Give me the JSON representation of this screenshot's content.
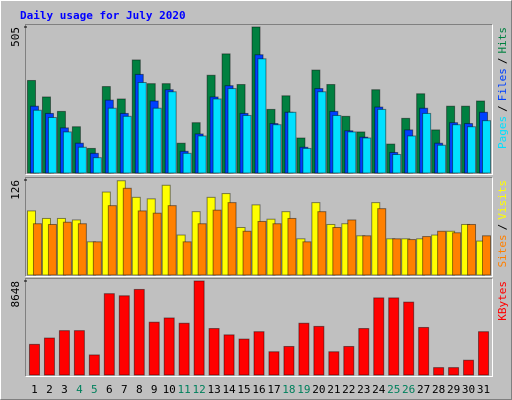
{
  "chart_data": [
    {
      "type": "bar",
      "title": "Daily usage for July 2020",
      "ylim": [
        0,
        505
      ],
      "yticks": [
        505
      ],
      "legend_separator": "/",
      "series": [
        {
          "name": "Hits",
          "color": "#008040",
          "values": [
            320,
            263,
            213,
            160,
            85,
            299,
            256,
            391,
            309,
            309,
            103,
            174,
            338,
            412,
            306,
            505,
            220,
            267,
            121,
            356,
            306,
            196,
            142,
            288,
            100,
            189,
            274,
            149,
            231,
            231,
            249
          ]
        },
        {
          "name": "Files",
          "color": "#0040ff",
          "values": [
            231,
            206,
            156,
            103,
            68,
            252,
            206,
            341,
            249,
            288,
            75,
            135,
            263,
            302,
            206,
            409,
            171,
            210,
            89,
            292,
            213,
            146,
            124,
            228,
            71,
            149,
            224,
            103,
            174,
            171,
            210
          ]
        },
        {
          "name": "Pages",
          "color": "#00e0ff",
          "values": [
            217,
            192,
            142,
            89,
            53,
            224,
            196,
            313,
            224,
            281,
            68,
            128,
            256,
            292,
            199,
            395,
            167,
            210,
            85,
            281,
            199,
            142,
            121,
            220,
            64,
            128,
            206,
            96,
            167,
            160,
            181
          ]
        }
      ]
    },
    {
      "type": "bar",
      "ylim": [
        0,
        126
      ],
      "yticks": [
        126
      ],
      "legend_separator": "/",
      "series": [
        {
          "name": "Visits",
          "color": "#ffff00",
          "values": [
            85,
            75,
            75,
            73,
            44,
            110,
            125,
            103,
            101,
            119,
            53,
            84,
            103,
            108,
            63,
            93,
            74,
            84,
            48,
            96,
            67,
            68,
            52,
            96,
            48,
            48,
            48,
            53,
            58,
            67,
            45
          ]
        },
        {
          "name": "Sites",
          "color": "#ff8000",
          "values": [
            68,
            67,
            70,
            68,
            44,
            92,
            115,
            85,
            82,
            92,
            44,
            68,
            86,
            96,
            58,
            71,
            68,
            75,
            44,
            84,
            63,
            73,
            52,
            88,
            48,
            47,
            51,
            58,
            56,
            67,
            52
          ]
        }
      ]
    },
    {
      "type": "bar",
      "ylim": [
        0,
        8648
      ],
      "yticks": [
        8648
      ],
      "categories": [
        "1",
        "2",
        "3",
        "4",
        "5",
        "6",
        "7",
        "8",
        "9",
        "10",
        "11",
        "12",
        "13",
        "14",
        "15",
        "16",
        "17",
        "18",
        "19",
        "20",
        "21",
        "22",
        "23",
        "24",
        "25",
        "26",
        "27",
        "28",
        "29",
        "30",
        "31"
      ],
      "category_colors": [
        "#000000",
        "#000000",
        "#000000",
        "#00805c",
        "#00805c",
        "#000000",
        "#000000",
        "#000000",
        "#000000",
        "#000000",
        "#00805c",
        "#00805c",
        "#000000",
        "#000000",
        "#000000",
        "#000000",
        "#000000",
        "#00805c",
        "#00805c",
        "#000000",
        "#000000",
        "#000000",
        "#000000",
        "#000000",
        "#00805c",
        "#00805c",
        "#000000",
        "#000000",
        "#000000",
        "#000000",
        "#000000"
      ],
      "series": [
        {
          "name": "KBytes",
          "color": "#ff0000",
          "values": [
            2818,
            3401,
            4081,
            4081,
            1846,
            7482,
            7288,
            7871,
            4858,
            5247,
            4761,
            8648,
            4275,
            3692,
            3304,
            3984,
            2138,
            2624,
            4761,
            4470,
            2138,
            2624,
            4275,
            7093,
            7093,
            6705,
            4373,
            680,
            680,
            1360,
            3984
          ]
        }
      ]
    }
  ]
}
